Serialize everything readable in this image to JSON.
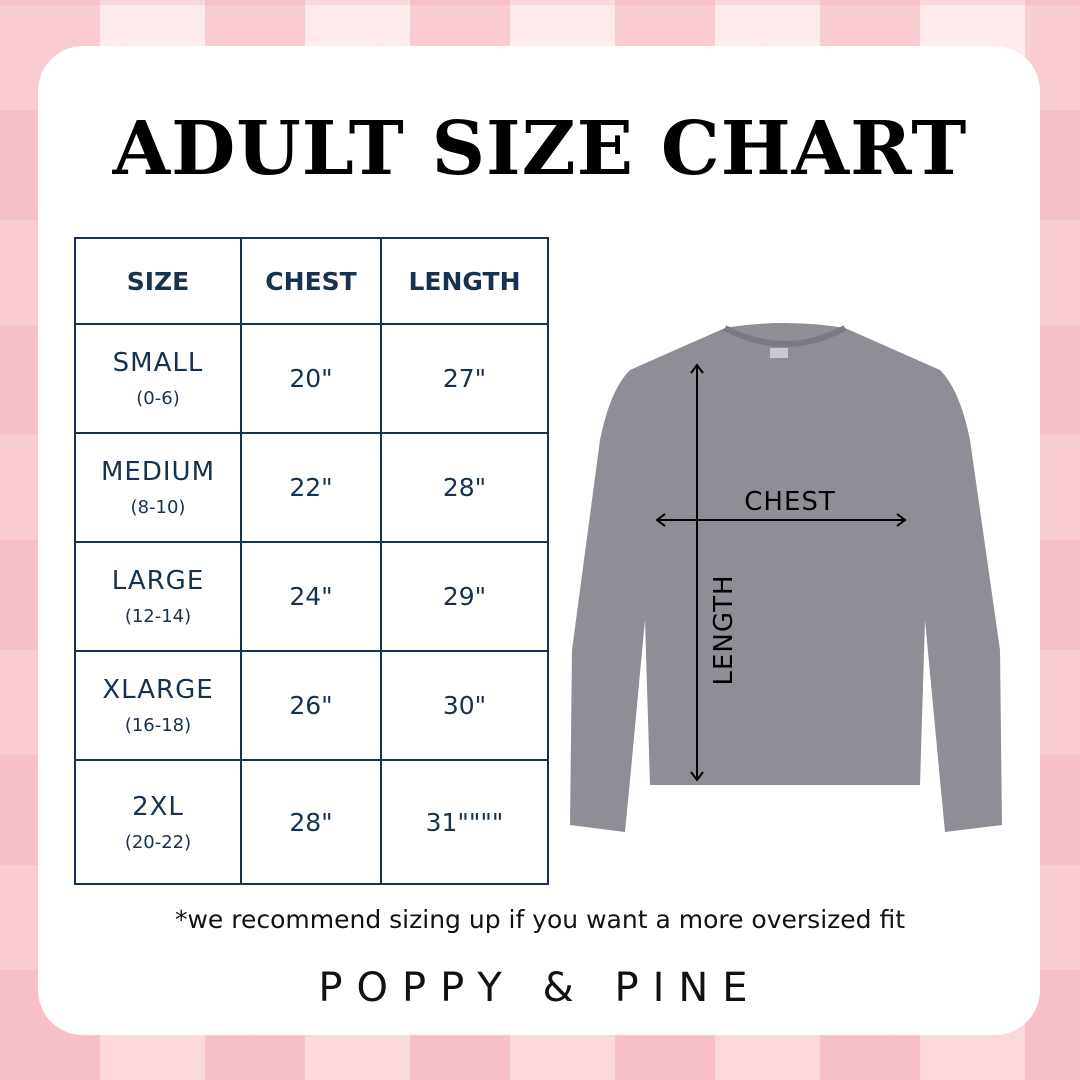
{
  "title": "ADULT SIZE CHART",
  "table": {
    "headers": [
      "SIZE",
      "CHEST",
      "LENGTH"
    ],
    "rows": [
      {
        "size": "SMALL",
        "range": "(0-6)",
        "chest": "20\"",
        "length": "27\""
      },
      {
        "size": "MEDIUM",
        "range": "(8-10)",
        "chest": "22\"",
        "length": "28\""
      },
      {
        "size": "LARGE",
        "range": "(12-14)",
        "chest": "24\"",
        "length": "29\""
      },
      {
        "size": "XLARGE",
        "range": "(16-18)",
        "chest": "26\"",
        "length": "30\""
      },
      {
        "size": "2XL",
        "range": "(20-22)",
        "chest": "28\"",
        "length": "31\"\"\"\""
      }
    ]
  },
  "diagram": {
    "chest_label": "CHEST",
    "length_label": "LENGTH",
    "shirt_color": "#8e8e96"
  },
  "note": "*we recommend sizing up if you want a more oversized fit",
  "brand": "POPPY & PINE",
  "colors": {
    "table": "#16324f",
    "background": "#fbe3e6"
  }
}
